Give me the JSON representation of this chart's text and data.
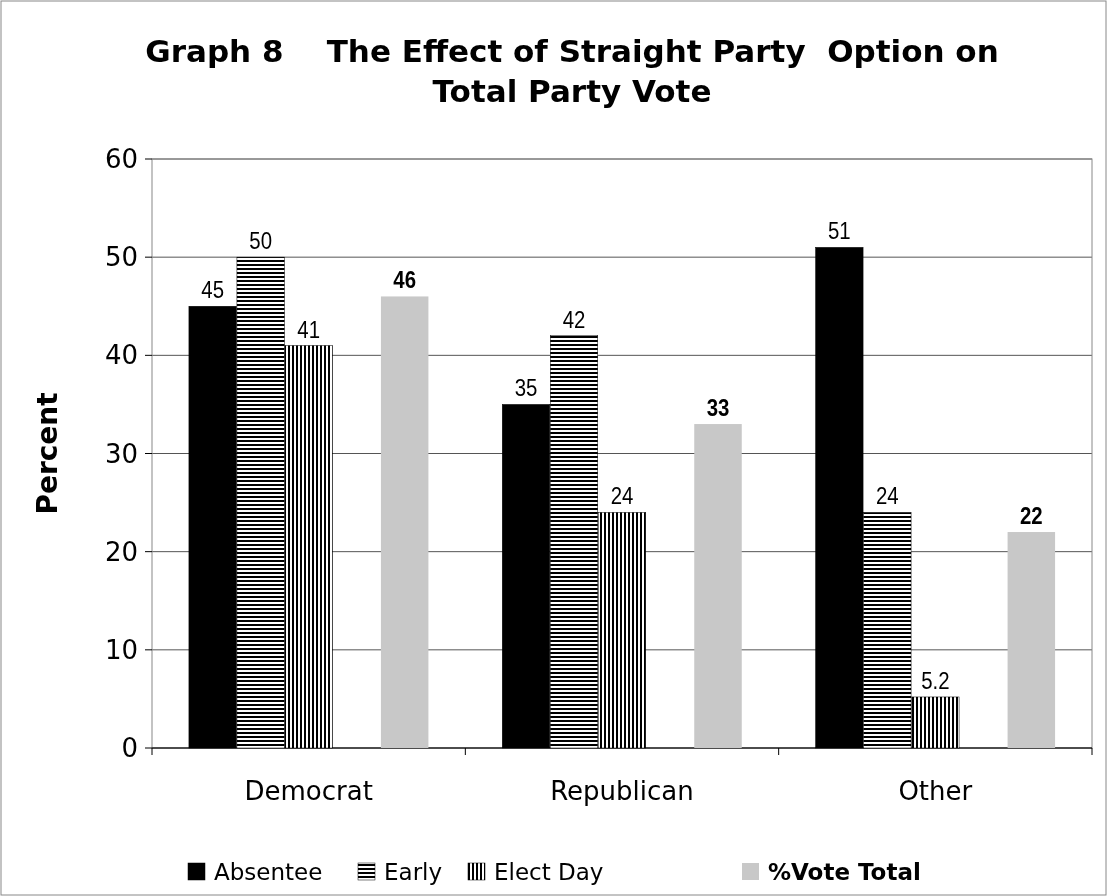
{
  "chart_data": {
    "type": "bar",
    "title": "Graph 8    The Effect of Straight Party  Option on\nTotal Party Vote",
    "ylabel": "Percent",
    "categories": [
      "Democrat",
      "Republican",
      "Other"
    ],
    "series": [
      {
        "name": "Absentee",
        "color": "#000000",
        "values": [
          45,
          35,
          51
        ]
      },
      {
        "name": "Early",
        "color": "#000000",
        "values": [
          50,
          42,
          24
        ]
      },
      {
        "name": "Elect Day",
        "color": "#000000",
        "values": [
          41,
          24,
          5.2
        ]
      },
      {
        "name": "%Vote Total",
        "color": "#c8c8c8",
        "values": [
          46,
          33,
          22
        ]
      }
    ],
    "ylim": [
      0,
      60
    ],
    "yticks": [
      0,
      10,
      20,
      30,
      40,
      50,
      60
    ],
    "grid": "y",
    "data_labels": true,
    "legend": "bottom"
  }
}
